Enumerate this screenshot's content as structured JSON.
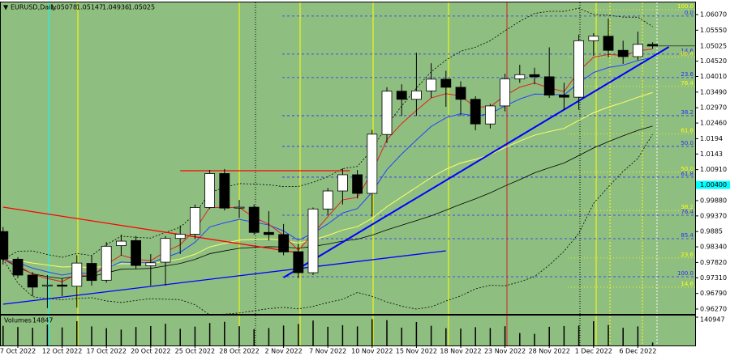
{
  "chart_data": {
    "type": "candlestick",
    "title": "EURUSD,Daily",
    "background": "#8fbf80",
    "categories": [
      null,
      "7 Oct 2022",
      null,
      null,
      "12 Oct 2022",
      null,
      null,
      "17 Oct 2022",
      null,
      null,
      "20 Oct 2022",
      null,
      null,
      "25 Oct 2022",
      null,
      null,
      "28 Oct 2022",
      null,
      null,
      "2 Nov 2022",
      null,
      null,
      "7 Nov 2022",
      null,
      null,
      "10 Nov 2022",
      null,
      null,
      "15 Nov 2022",
      null,
      null,
      "18 Nov 2022",
      null,
      null,
      "23 Nov 2022",
      null,
      null,
      "28 Nov 2022",
      null,
      null,
      "1 Dec 2022",
      null,
      null,
      "6 Dec 2022",
      null
    ],
    "open": [
      0.9885,
      0.9793,
      0.974,
      0.9704,
      0.9707,
      0.9703,
      0.9779,
      0.9723,
      0.9838,
      0.9855,
      0.9771,
      0.9783,
      0.9862,
      0.9876,
      0.9965,
      1.0078,
      0.9963,
      0.9966,
      0.9882,
      0.9875,
      0.9818,
      0.9748,
      0.996,
      1.002,
      1.0074,
      1.0012,
      1.0208,
      1.0352,
      1.0325,
      1.0353,
      1.0392,
      1.0365,
      1.0325,
      1.0243,
      1.0303,
      1.0393,
      1.0407,
      1.04,
      1.0339,
      1.0332,
      1.052,
      1.0535,
      1.0488,
      1.0467,
      1.05078
    ],
    "high": [
      0.99,
      0.98,
      0.975,
      0.974,
      0.973,
      0.9806,
      0.9806,
      0.985,
      0.9875,
      0.987,
      0.981,
      0.987,
      0.9905,
      0.9975,
      1.009,
      1.0093,
      0.999,
      0.9975,
      0.9953,
      0.991,
      0.9845,
      0.9965,
      1.003,
      1.0095,
      1.009,
      1.0223,
      1.0365,
      1.0375,
      1.048,
      1.0445,
      1.042,
      1.0385,
      1.0335,
      1.031,
      1.041,
      1.044,
      1.043,
      1.0498,
      1.038,
      1.054,
      1.0545,
      1.0594,
      1.052,
      1.055,
      1.05147
    ],
    "low": [
      0.9775,
      0.973,
      0.967,
      0.963,
      0.967,
      0.9632,
      0.9705,
      0.9715,
      0.9805,
      0.976,
      0.9705,
      0.9705,
      0.981,
      0.986,
      0.996,
      0.9955,
      0.993,
      0.9875,
      0.9855,
      0.9806,
      0.973,
      0.974,
      0.994,
      0.9975,
      0.9995,
      0.9935,
      1.018,
      1.027,
      1.027,
      1.033,
      1.03,
      1.027,
      1.0222,
      1.0228,
      1.0285,
      1.038,
      1.0375,
      1.033,
      1.029,
      1.029,
      1.047,
      1.0465,
      1.0443,
      1.0455,
      1.04936
    ],
    "close": [
      0.9793,
      0.974,
      0.97,
      0.9707,
      0.9703,
      0.978,
      0.9722,
      0.9836,
      0.9853,
      0.9772,
      0.9781,
      0.9862,
      0.9876,
      0.9965,
      1.0078,
      0.9963,
      0.9966,
      0.9882,
      0.9875,
      0.9817,
      0.9748,
      0.996,
      1.002,
      1.0074,
      1.0012,
      1.0209,
      1.0352,
      1.0325,
      1.0353,
      1.0392,
      1.0365,
      1.0325,
      1.0243,
      1.0303,
      1.0393,
      1.0407,
      1.04,
      1.0339,
      1.0332,
      1.052,
      1.0535,
      1.0488,
      1.0467,
      1.0508,
      1.05025
    ],
    "ylim": [
      0.96108,
      1.06474
    ],
    "yticks": [
      {
        "value": 1.0607,
        "label": "1.06070"
      },
      {
        "value": 1.0555,
        "label": "1.05550"
      },
      {
        "value": 1.0452,
        "label": "1.04520"
      },
      {
        "value": 1.0401,
        "label": "1.04010"
      },
      {
        "value": 1.0349,
        "label": "1.03490"
      },
      {
        "value": 1.0297,
        "label": "1.02970"
      },
      {
        "value": 1.0246,
        "label": "1.02460"
      },
      1.0194,
      1.0143,
      {
        "value": 1.0091,
        "label": "1.00910"
      },
      {
        "value": 0.9988,
        "label": "0.99880"
      },
      {
        "value": 0.9937,
        "label": "0.99370"
      },
      0.9885,
      {
        "value": 0.9834,
        "label": "0.98340"
      },
      {
        "value": 0.9782,
        "label": "0.97820"
      },
      {
        "value": 0.9731,
        "label": "0.97310"
      },
      {
        "value": 0.9679,
        "label": "0.96790"
      },
      {
        "value": 0.9627,
        "label": "0.96270"
      }
    ],
    "alert_level": {
      "value": 1.004,
      "label": "1.00400"
    },
    "volume_label": "Volumes",
    "volumes": [
      98000,
      92000,
      88000,
      104000,
      90000,
      121000,
      95000,
      86000,
      79000,
      92000,
      97000,
      108000,
      83000,
      94000,
      112000,
      118000,
      96000,
      81000,
      87000,
      99000,
      107000,
      124000,
      93000,
      101000,
      95000,
      131000,
      126000,
      89000,
      117000,
      98000,
      86000,
      84000,
      91000,
      87000,
      96000,
      62000,
      58000,
      93000,
      97000,
      99000,
      121000,
      102000,
      88000,
      95000,
      14847
    ],
    "volume_ylim": [
      0,
      140947
    ],
    "volume_yticks": [
      140947
    ],
    "trendlines": [
      {
        "color": "#ff0000",
        "x": [
          0,
          19.85
        ],
        "y": [
          0.99662,
          0.98154
        ]
      },
      {
        "color": "#ff0000",
        "x": [
          12,
          23.5
        ],
        "y": [
          1.00873,
          1.00873
        ]
      },
      {
        "color": "#0000ff",
        "x": [
          19,
          45.1
        ],
        "y": [
          0.97319,
          1.04993
        ]
      },
      {
        "color": "#0000ff",
        "x": [
          0,
          30
        ],
        "y": [
          0.96431,
          0.98208
        ]
      }
    ],
    "fibonacci": [
      {
        "color": "#2a2aff",
        "start": 1.0602,
        "end": 0.97346,
        "levels": [
          {
            "value": 0,
            "label": "0.0"
          },
          14.6,
          23.6,
          38.2,
          {
            "value": 50,
            "label": "50.0"
          },
          61.8,
          76.4,
          85.4,
          {
            "value": 100,
            "label": "100.0"
          }
        ]
      },
      {
        "color": "#ffff00",
        "start": 0.95419,
        "end": 1.06232,
        "levels": [
          14.6,
          23.6,
          38.2,
          {
            "value": 50,
            "label": "50.0"
          },
          61.8,
          76.4,
          85.4,
          {
            "value": 100,
            "label": "100.0"
          }
        ]
      }
    ]
  }
}
